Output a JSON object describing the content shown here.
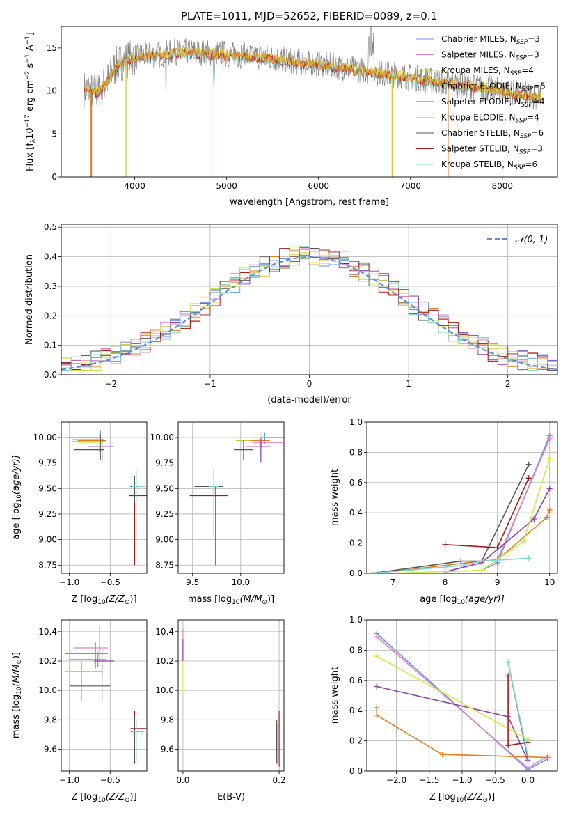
{
  "figure_title": "PLATE=1011, MJD=52652, FIBERID=0089, z=0.1",
  "colors": {
    "Chabrier MILES": "#6495ed",
    "Salpeter MILES": "#e47fc2",
    "Kroupa MILES": "#d4c430",
    "Chabrier ELODIE": "#e07b1f",
    "Salpeter ELODIE": "#8e3fa8",
    "Kroupa ELODIE": "#d7ec52",
    "Chabrier STELIB": "#555555",
    "Salpeter STELIB": "#a81818",
    "Kroupa STELIB": "#7fd6db",
    "data": "#7f7f7f",
    "gauss": "#5b8fd6"
  },
  "chart_data": [
    {
      "id": "spectrum",
      "type": "line",
      "title": "PLATE=1011, MJD=52652, FIBERID=0089, z=0.1",
      "xlabel": "wavelength [Angstrom, rest frame]",
      "ylabel_main": "Flux [f",
      "ylabel_sub": "λ",
      "ylabel_rest": "10",
      "ylabel_exp": "−17",
      "ylabel_units": " erg cm",
      "ylabel_units2": " s",
      "ylabel_units3": " A",
      "ylabel_exp2": "−2",
      "ylabel_exp3": "−1",
      "ylabel_exp4": "−1",
      "ylabel_close": "]",
      "xlim": [
        3200,
        8600
      ],
      "ylim": [
        0,
        17.5
      ],
      "xticks": [
        4000,
        5000,
        6000,
        7000,
        8000
      ],
      "yticks": [
        0,
        5,
        10,
        15
      ],
      "continuum_points": [
        [
          3450,
          10.2
        ],
        [
          3600,
          9.9
        ],
        [
          3700,
          11.2
        ],
        [
          3800,
          13.0
        ],
        [
          3900,
          13.6
        ],
        [
          4000,
          14.0
        ],
        [
          4200,
          14.2
        ],
        [
          4500,
          14.6
        ],
        [
          5000,
          14.3
        ],
        [
          5500,
          13.8
        ],
        [
          6000,
          13.1
        ],
        [
          6500,
          12.4
        ],
        [
          7000,
          11.6
        ],
        [
          7500,
          10.8
        ],
        [
          8000,
          10.0
        ],
        [
          8400,
          9.3
        ]
      ],
      "legend": [
        {
          "label": "Chabrier MILES, N",
          "n": "3",
          "color": "Chabrier MILES"
        },
        {
          "label": "Salpeter MILES, N",
          "n": "3",
          "color": "Salpeter MILES"
        },
        {
          "label": "Kroupa MILES, N",
          "n": "4",
          "color": "Kroupa MILES"
        },
        {
          "label": "Chabrier ELODIE, N",
          "n": "5",
          "color": "Chabrier ELODIE"
        },
        {
          "label": "Salpeter ELODIE, N",
          "n": "4",
          "color": "Salpeter ELODIE"
        },
        {
          "label": "Kroupa ELODIE, N",
          "n": "4",
          "color": "Kroupa ELODIE"
        },
        {
          "label": "Chabrier STELIB, N",
          "n": "6",
          "color": "Chabrier STELIB"
        },
        {
          "label": "Salpeter STELIB, N",
          "n": "3",
          "color": "Salpeter STELIB"
        },
        {
          "label": "Kroupa STELIB, N",
          "n": "6",
          "color": "Kroupa STELIB"
        }
      ],
      "legend_sub": "SSP",
      "legend_eq": "="
    },
    {
      "id": "residuals",
      "type": "histogram",
      "xlabel": "(data-model)/error",
      "ylabel": "Normed distribution",
      "xlim": [
        -2.5,
        2.5
      ],
      "ylim": [
        0,
        0.51
      ],
      "xticks": [
        -2,
        -1,
        0,
        1,
        2
      ],
      "yticks": [
        0.0,
        0.1,
        0.2,
        0.3,
        0.4,
        0.5
      ],
      "bin_width": 0.1,
      "legend": "𝒩(0, 1)",
      "grid": true
    },
    {
      "id": "age_vs_Z",
      "type": "errorbar",
      "xlabel": "Z [log",
      "xlabel_sub": "10",
      "xlabel_rest": "(Z/Z",
      "xlabel_odot": "⊙",
      "xlabel_close": ")]",
      "ylabel": "age  [log",
      "ylabel_sub": "10",
      "ylabel_rest": "(age/yr)]",
      "xlim": [
        -1.1,
        -0.05
      ],
      "ylim": [
        8.67,
        10.15
      ],
      "xticks": [
        -1.0,
        -0.5
      ],
      "yticks": [
        8.75,
        9.0,
        9.25,
        9.5,
        9.75,
        10.0
      ],
      "points": [
        {
          "s": "Chabrier MILES",
          "x": -0.62,
          "y": 10.0,
          "xerr": [
            0.42,
            0.0
          ],
          "yerr": [
            0.02,
            0.07
          ]
        },
        {
          "s": "Salpeter MILES",
          "x": -0.63,
          "y": 9.98,
          "xerr": [
            0.33,
            0.05
          ],
          "yerr": [
            0.04,
            0.06
          ]
        },
        {
          "s": "Kroupa MILES",
          "x": -0.63,
          "y": 9.96,
          "xerr": [
            0.34,
            0.07
          ],
          "yerr": [
            0.12,
            0.05
          ]
        },
        {
          "s": "Chabrier ELODIE",
          "x": -0.6,
          "y": 9.97,
          "xerr": [
            0.3,
            0.05
          ],
          "yerr": [
            0.2,
            0.04
          ]
        },
        {
          "s": "Salpeter ELODIE",
          "x": -0.6,
          "y": 9.91,
          "xerr": [
            0.18,
            0.15
          ],
          "yerr": [
            0.15,
            0.08
          ]
        },
        {
          "s": "Kroupa ELODIE",
          "x": -0.62,
          "y": 9.95,
          "xerr": [
            0.28,
            0.05
          ],
          "yerr": [
            0.14,
            0.07
          ]
        },
        {
          "s": "Chabrier STELIB",
          "x": -0.62,
          "y": 9.88,
          "xerr": [
            0.32,
            0.05
          ],
          "yerr": [
            0.1,
            0.15
          ]
        },
        {
          "s": "Salpeter STELIB",
          "x": -0.2,
          "y": 9.43,
          "xerr": [
            0.07,
            0.15
          ],
          "yerr": [
            0.68,
            0.1
          ]
        },
        {
          "s": "Chabrier STELIB",
          "x": -0.2,
          "y": 9.52,
          "xerr": [
            0.05,
            0.13
          ],
          "yerr": [
            0.15,
            0.1
          ]
        },
        {
          "s": "Kroupa STELIB",
          "x": -0.18,
          "y": 9.52,
          "xerr": [
            0.05,
            0.12
          ],
          "yerr": [
            0.5,
            0.16
          ]
        }
      ]
    },
    {
      "id": "age_vs_mass",
      "type": "errorbar",
      "xlabel": "mass [log",
      "xlabel_sub": "10",
      "xlabel_rest": "(M/M",
      "xlabel_odot": "⊙",
      "xlabel_close": ")]",
      "xlim": [
        9.35,
        10.45
      ],
      "ylim": [
        8.67,
        10.15
      ],
      "xticks": [
        9.5,
        10.0
      ],
      "yticks": [
        8.75,
        9.0,
        9.25,
        9.5,
        9.75,
        10.0
      ],
      "points": [
        {
          "s": "Chabrier MILES",
          "x": 10.25,
          "y": 10.0,
          "xerr": [
            0.05,
            0.2
          ],
          "yerr": [
            0.07,
            0.05
          ]
        },
        {
          "s": "Salpeter MILES",
          "x": 10.22,
          "y": 9.95,
          "xerr": [
            0.1,
            0.22
          ],
          "yerr": [
            0.05,
            0.1
          ]
        },
        {
          "s": "Kroupa MILES",
          "x": 10.15,
          "y": 9.97,
          "xerr": [
            0.2,
            0.1
          ],
          "yerr": [
            0.1,
            0.05
          ]
        },
        {
          "s": "Chabrier ELODIE",
          "x": 10.2,
          "y": 9.97,
          "xerr": [
            0.1,
            0.1
          ],
          "yerr": [
            0.15,
            0.05
          ]
        },
        {
          "s": "Salpeter ELODIE",
          "x": 10.21,
          "y": 9.91,
          "xerr": [
            0.15,
            0.1
          ],
          "yerr": [
            0.15,
            0.08
          ]
        },
        {
          "s": "Chabrier STELIB",
          "x": 10.03,
          "y": 9.88,
          "xerr": [
            0.1,
            0.1
          ],
          "yerr": [
            0.1,
            0.1
          ]
        },
        {
          "s": "Salpeter STELIB",
          "x": 9.74,
          "y": 9.43,
          "xerr": [
            0.27,
            0.13
          ],
          "yerr": [
            0.68,
            0.1
          ]
        },
        {
          "s": "Chabrier STELIB",
          "x": 9.72,
          "y": 9.52,
          "xerr": [
            0.2,
            0.1
          ],
          "yerr": [
            0.15,
            0.1
          ]
        },
        {
          "s": "Kroupa STELIB",
          "x": 9.72,
          "y": 9.52,
          "xerr": [
            0.05,
            0.05
          ],
          "yerr": [
            0.5,
            0.16
          ]
        }
      ]
    },
    {
      "id": "weight_vs_age",
      "type": "line",
      "xlabel": "age  [log",
      "xlabel_sub": "10",
      "xlabel_rest": "(age/yr)]",
      "ylabel": "mass weight",
      "xlim": [
        6.5,
        10.15
      ],
      "ylim": [
        0,
        1.0
      ],
      "xticks": [
        7,
        8,
        9,
        10
      ],
      "yticks": [
        0.0,
        0.2,
        0.4,
        0.6,
        0.8,
        1.0
      ],
      "series": [
        {
          "s": "Chabrier MILES",
          "x": [
            8.7,
            9.0,
            10.0
          ],
          "y": [
            0.02,
            0.07,
            0.91
          ]
        },
        {
          "s": "Salpeter MILES",
          "x": [
            8.7,
            9.0,
            10.0
          ],
          "y": [
            0.02,
            0.09,
            0.89
          ]
        },
        {
          "s": "Kroupa MILES",
          "x": [
            8.0,
            8.7,
            9.5,
            10.0
          ],
          "y": [
            0.01,
            0.02,
            0.21,
            0.76
          ]
        },
        {
          "s": "Chabrier ELODIE",
          "x": [
            6.7,
            8.7,
            9.0,
            9.95,
            10.0
          ],
          "y": [
            0.0,
            0.08,
            0.09,
            0.37,
            0.42
          ]
        },
        {
          "s": "Salpeter ELODIE",
          "x": [
            8.0,
            8.7,
            9.7,
            10.0
          ],
          "y": [
            0.01,
            0.07,
            0.36,
            0.56
          ]
        },
        {
          "s": "Kroupa ELODIE",
          "x": [
            6.9,
            8.7,
            9.5,
            10.0
          ],
          "y": [
            0.0,
            0.02,
            0.21,
            0.76
          ]
        },
        {
          "s": "Chabrier STELIB",
          "x": [
            6.6,
            8.3,
            8.7,
            9.6
          ],
          "y": [
            0.0,
            0.08,
            0.08,
            0.72
          ]
        },
        {
          "s": "Salpeter STELIB",
          "x": [
            8.0,
            9.0,
            9.6
          ],
          "y": [
            0.19,
            0.17,
            0.63
          ]
        },
        {
          "s": "Kroupa STELIB",
          "x": [
            6.6,
            8.3,
            8.7,
            9.6
          ],
          "y": [
            0.0,
            0.05,
            0.08,
            0.1
          ]
        }
      ]
    },
    {
      "id": "mass_vs_Z",
      "type": "errorbar",
      "xlabel": "Z [log",
      "xlabel_sub": "10",
      "xlabel_rest": "(Z/Z",
      "xlabel_odot": "⊙",
      "xlabel_close": ")]",
      "ylabel": "mass [log",
      "ylabel_sub": "10",
      "ylabel_rest": "(M/M",
      "ylabel_odot": "⊙",
      "ylabel_close": ")]",
      "xlim": [
        -1.1,
        -0.05
      ],
      "ylim": [
        9.45,
        10.48
      ],
      "xticks": [
        -1.0,
        -0.5
      ],
      "yticks": [
        9.6,
        9.8,
        10.0,
        10.2,
        10.4
      ],
      "points": [
        {
          "s": "Chabrier MILES",
          "x": -0.68,
          "y": 10.25,
          "xerr": [
            0.37,
            0.15
          ],
          "yerr": [
            0.1,
            0.08
          ]
        },
        {
          "s": "Salpeter MILES",
          "x": -0.63,
          "y": 10.29,
          "xerr": [
            0.32,
            0.1
          ],
          "yerr": [
            0.1,
            0.15
          ]
        },
        {
          "s": "Kroupa MILES",
          "x": -0.85,
          "y": 10.13,
          "xerr": [
            0.2,
            0.25
          ],
          "yerr": [
            0.2,
            0.07
          ]
        },
        {
          "s": "Chabrier ELODIE",
          "x": -0.65,
          "y": 10.21,
          "xerr": [
            0.35,
            0.1
          ],
          "yerr": [
            0.05,
            0.05
          ]
        },
        {
          "s": "Salpeter ELODIE",
          "x": -0.6,
          "y": 10.2,
          "xerr": [
            0.1,
            0.15
          ],
          "yerr": [
            0.1,
            0.08
          ]
        },
        {
          "s": "Chabrier STELIB",
          "x": -0.6,
          "y": 10.03,
          "xerr": [
            0.4,
            0.1
          ],
          "yerr": [
            0.1,
            0.15
          ]
        },
        {
          "s": "Salpeter STELIB",
          "x": -0.2,
          "y": 9.74,
          "xerr": [
            0.05,
            0.15
          ],
          "yerr": [
            0.24,
            0.12
          ]
        },
        {
          "s": "Chabrier STELIB",
          "x": -0.2,
          "y": 9.72,
          "xerr": [
            0.05,
            0.1
          ],
          "yerr": [
            0.2,
            0.1
          ]
        },
        {
          "s": "Kroupa STELIB",
          "x": -0.18,
          "y": 9.72,
          "xerr": [
            0.05,
            0.07
          ],
          "yerr": [
            0.2,
            0.08
          ]
        }
      ]
    },
    {
      "id": "mass_vs_ebv",
      "type": "errorbar",
      "xlabel": "E(B-V)",
      "xlim": [
        -0.01,
        0.21
      ],
      "ylim": [
        9.45,
        10.48
      ],
      "xticks": [
        0.0,
        0.2
      ],
      "yticks": [
        9.6,
        9.8,
        10.0,
        10.2,
        10.4
      ],
      "points": [
        {
          "s": "Salpeter MILES",
          "x": 0.0,
          "y": 10.3,
          "xerr": [
            0,
            0
          ],
          "yerr": [
            0.1,
            0.12
          ]
        },
        {
          "s": "Kroupa ELODIE",
          "x": 0.0,
          "y": 10.13,
          "xerr": [
            0,
            0
          ],
          "yerr": [
            0.15,
            0.08
          ]
        },
        {
          "s": "Salpeter ELODIE",
          "x": 0.0,
          "y": 10.25,
          "xerr": [
            0,
            0
          ],
          "yerr": [
            0.05,
            0.1
          ]
        },
        {
          "s": "Chabrier STELIB",
          "x": 0.195,
          "y": 9.65,
          "xerr": [
            0,
            0
          ],
          "yerr": [
            0.15,
            0.15
          ]
        },
        {
          "s": "Salpeter STELIB",
          "x": 0.2,
          "y": 9.72,
          "xerr": [
            0,
            0
          ],
          "yerr": [
            0.24,
            0.14
          ]
        },
        {
          "s": "Kroupa STELIB",
          "x": 0.197,
          "y": 9.65,
          "xerr": [
            0,
            0
          ],
          "yerr": [
            0.15,
            0.12
          ]
        }
      ]
    },
    {
      "id": "weight_vs_Z",
      "type": "line",
      "xlabel": "Z [log",
      "xlabel_sub": "10",
      "xlabel_rest": "(Z/Z",
      "xlabel_odot": "⊙",
      "xlabel_close": ")]",
      "ylabel": "mass weight",
      "xlim": [
        -2.45,
        0.45
      ],
      "ylim": [
        0,
        1.0
      ],
      "xticks": [
        -2.0,
        -1.5,
        -1.0,
        -0.5,
        0.0
      ],
      "yticks": [
        0.0,
        0.2,
        0.4,
        0.6,
        0.8,
        1.0
      ],
      "series": [
        {
          "s": "Chabrier MILES",
          "x": [
            -2.3,
            0.0,
            0.3
          ],
          "y": [
            0.91,
            0.01,
            0.08
          ]
        },
        {
          "s": "Salpeter MILES",
          "x": [
            -2.3,
            0.0,
            0.3
          ],
          "y": [
            0.89,
            0.02,
            0.1
          ]
        },
        {
          "s": "Kroupa MILES",
          "x": [
            -2.3,
            0.0
          ],
          "y": [
            0.76,
            0.21
          ]
        },
        {
          "s": "Chabrier ELODIE",
          "x": [
            -2.3,
            -2.3,
            -1.3,
            0.3
          ],
          "y": [
            0.42,
            0.37,
            0.11,
            0.09
          ]
        },
        {
          "s": "Salpeter ELODIE",
          "x": [
            -2.3,
            -0.3,
            0.0
          ],
          "y": [
            0.56,
            0.36,
            0.07
          ]
        },
        {
          "s": "Kroupa ELODIE",
          "x": [
            -2.3,
            0.0
          ],
          "y": [
            0.76,
            0.21
          ]
        },
        {
          "s": "Chabrier STELIB",
          "x": [
            -0.3,
            0.0
          ],
          "y": [
            0.72,
            0.08
          ]
        },
        {
          "s": "Salpeter STELIB",
          "x": [
            -0.3,
            -0.3,
            0.0
          ],
          "y": [
            0.63,
            0.17,
            0.19
          ]
        },
        {
          "s": "Kroupa STELIB",
          "x": [
            -0.3,
            0.0,
            0.0
          ],
          "y": [
            0.72,
            0.1,
            0.0
          ]
        }
      ]
    }
  ]
}
